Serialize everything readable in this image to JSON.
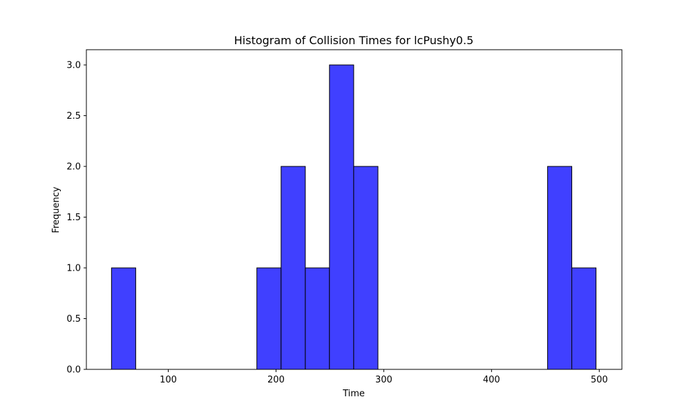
{
  "chart_data": {
    "type": "bar",
    "title": "Histogram of Collision Times for lcPushy0.5",
    "xlabel": "Time",
    "ylabel": "Frequency",
    "xlim": [
      24,
      521
    ],
    "ylim": [
      0,
      3.15
    ],
    "xticks": [
      100,
      200,
      300,
      400,
      500
    ],
    "yticks": [
      0.0,
      0.5,
      1.0,
      1.5,
      2.0,
      2.5,
      3.0
    ],
    "ytick_format": "0.1f",
    "grid": false,
    "legend": "none",
    "bins": [
      {
        "start": 47.3,
        "end": 69.8,
        "count": 1
      },
      {
        "start": 69.8,
        "end": 92.3,
        "count": 0
      },
      {
        "start": 92.3,
        "end": 114.7,
        "count": 0
      },
      {
        "start": 114.7,
        "end": 137.2,
        "count": 0
      },
      {
        "start": 137.2,
        "end": 159.7,
        "count": 0
      },
      {
        "start": 159.7,
        "end": 182.2,
        "count": 0
      },
      {
        "start": 182.2,
        "end": 204.7,
        "count": 1
      },
      {
        "start": 204.7,
        "end": 227.2,
        "count": 2
      },
      {
        "start": 227.2,
        "end": 249.6,
        "count": 1
      },
      {
        "start": 249.6,
        "end": 272.1,
        "count": 3
      },
      {
        "start": 272.1,
        "end": 294.6,
        "count": 2
      },
      {
        "start": 294.6,
        "end": 317.1,
        "count": 0
      },
      {
        "start": 317.1,
        "end": 339.6,
        "count": 0
      },
      {
        "start": 339.6,
        "end": 362.1,
        "count": 0
      },
      {
        "start": 362.1,
        "end": 384.5,
        "count": 0
      },
      {
        "start": 384.5,
        "end": 407.0,
        "count": 0
      },
      {
        "start": 407.0,
        "end": 429.5,
        "count": 0
      },
      {
        "start": 429.5,
        "end": 452.0,
        "count": 0
      },
      {
        "start": 452.0,
        "end": 474.5,
        "count": 2
      },
      {
        "start": 474.5,
        "end": 497.0,
        "count": 1
      }
    ],
    "colors": {
      "bar_fill": "#4040ff",
      "bar_edge": "#000000"
    }
  }
}
